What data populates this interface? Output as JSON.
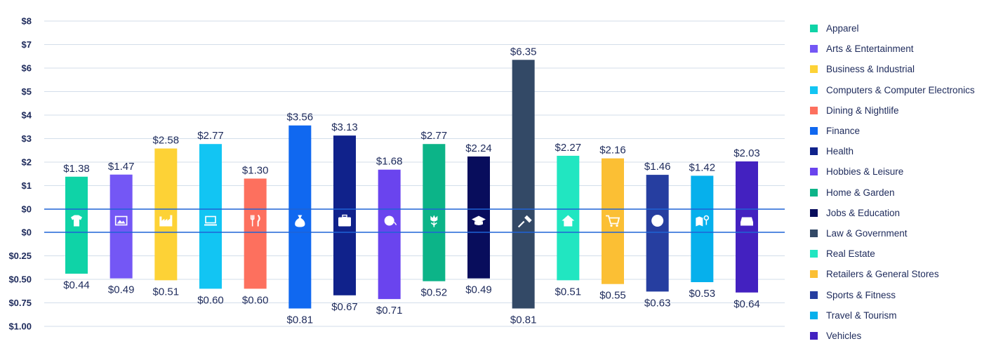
{
  "chart_data": {
    "type": "bar",
    "layout": "diverging",
    "upper_axis": {
      "ticks": [
        "$8",
        "$7",
        "$6",
        "$5",
        "$4",
        "$3",
        "$2",
        "$1",
        "$0"
      ],
      "ylim": [
        0,
        8
      ]
    },
    "lower_axis": {
      "ticks": [
        "$0",
        "$0.25",
        "$0.50",
        "$0.75",
        "$1.00"
      ],
      "ylim": [
        0,
        1
      ]
    },
    "grid": true,
    "legend_position": "right",
    "categories": [
      "Apparel",
      "Arts & Entertainment",
      "Business & Industrial",
      "Computers & Computer Electronics",
      "Dining & Nightlife",
      "Finance",
      "Health",
      "Hobbies & Leisure",
      "Home & Garden",
      "Jobs & Education",
      "Law & Government",
      "Real Estate",
      "Retailers & General Stores",
      "Sports & Fitness",
      "Travel & Tourism",
      "Vehicles"
    ],
    "series": [
      {
        "position": "upper",
        "values": [
          1.38,
          1.47,
          2.58,
          2.77,
          1.3,
          3.56,
          3.13,
          1.68,
          2.77,
          2.24,
          6.35,
          2.27,
          2.16,
          1.46,
          1.42,
          2.03
        ],
        "labels": [
          "$1.38",
          "$1.47",
          "$2.58",
          "$2.77",
          "$1.30",
          "$3.56",
          "$3.13",
          "$1.68",
          "$2.77",
          "$2.24",
          "$6.35",
          "$2.27",
          "$2.16",
          "$1.46",
          "$1.42",
          "$2.03"
        ]
      },
      {
        "position": "lower",
        "values": [
          0.44,
          0.49,
          0.51,
          0.6,
          0.6,
          0.81,
          0.67,
          0.71,
          0.52,
          0.49,
          0.81,
          0.51,
          0.55,
          0.63,
          0.53,
          0.64
        ],
        "labels": [
          "$0.44",
          "$0.49",
          "$0.51",
          "$0.60",
          "$0.60",
          "$0.81",
          "$0.67",
          "$0.71",
          "$0.52",
          "$0.49",
          "$0.81",
          "$0.51",
          "$0.55",
          "$0.63",
          "$0.53",
          "$0.64"
        ]
      }
    ],
    "colors": [
      "#0fd3a7",
      "#7457f5",
      "#fdd236",
      "#12c5f3",
      "#fd705e",
      "#1068f0",
      "#10228b",
      "#6a44ee",
      "#0cb488",
      "#080d5c",
      "#334966",
      "#21e6c1",
      "#fbbf34",
      "#263ea0",
      "#06b0ec",
      "#4321c0"
    ],
    "icons": [
      "tshirt-icon",
      "picture-icon",
      "factory-icon",
      "laptop-icon",
      "fork-knife-icon",
      "money-bag-icon",
      "medical-kit-icon",
      "yarn-ball-icon",
      "tulip-icon",
      "graduation-cap-icon",
      "gavel-icon",
      "house-icon",
      "shopping-cart-icon",
      "sports-ball-icon",
      "map-pin-icon",
      "car-icon"
    ]
  }
}
